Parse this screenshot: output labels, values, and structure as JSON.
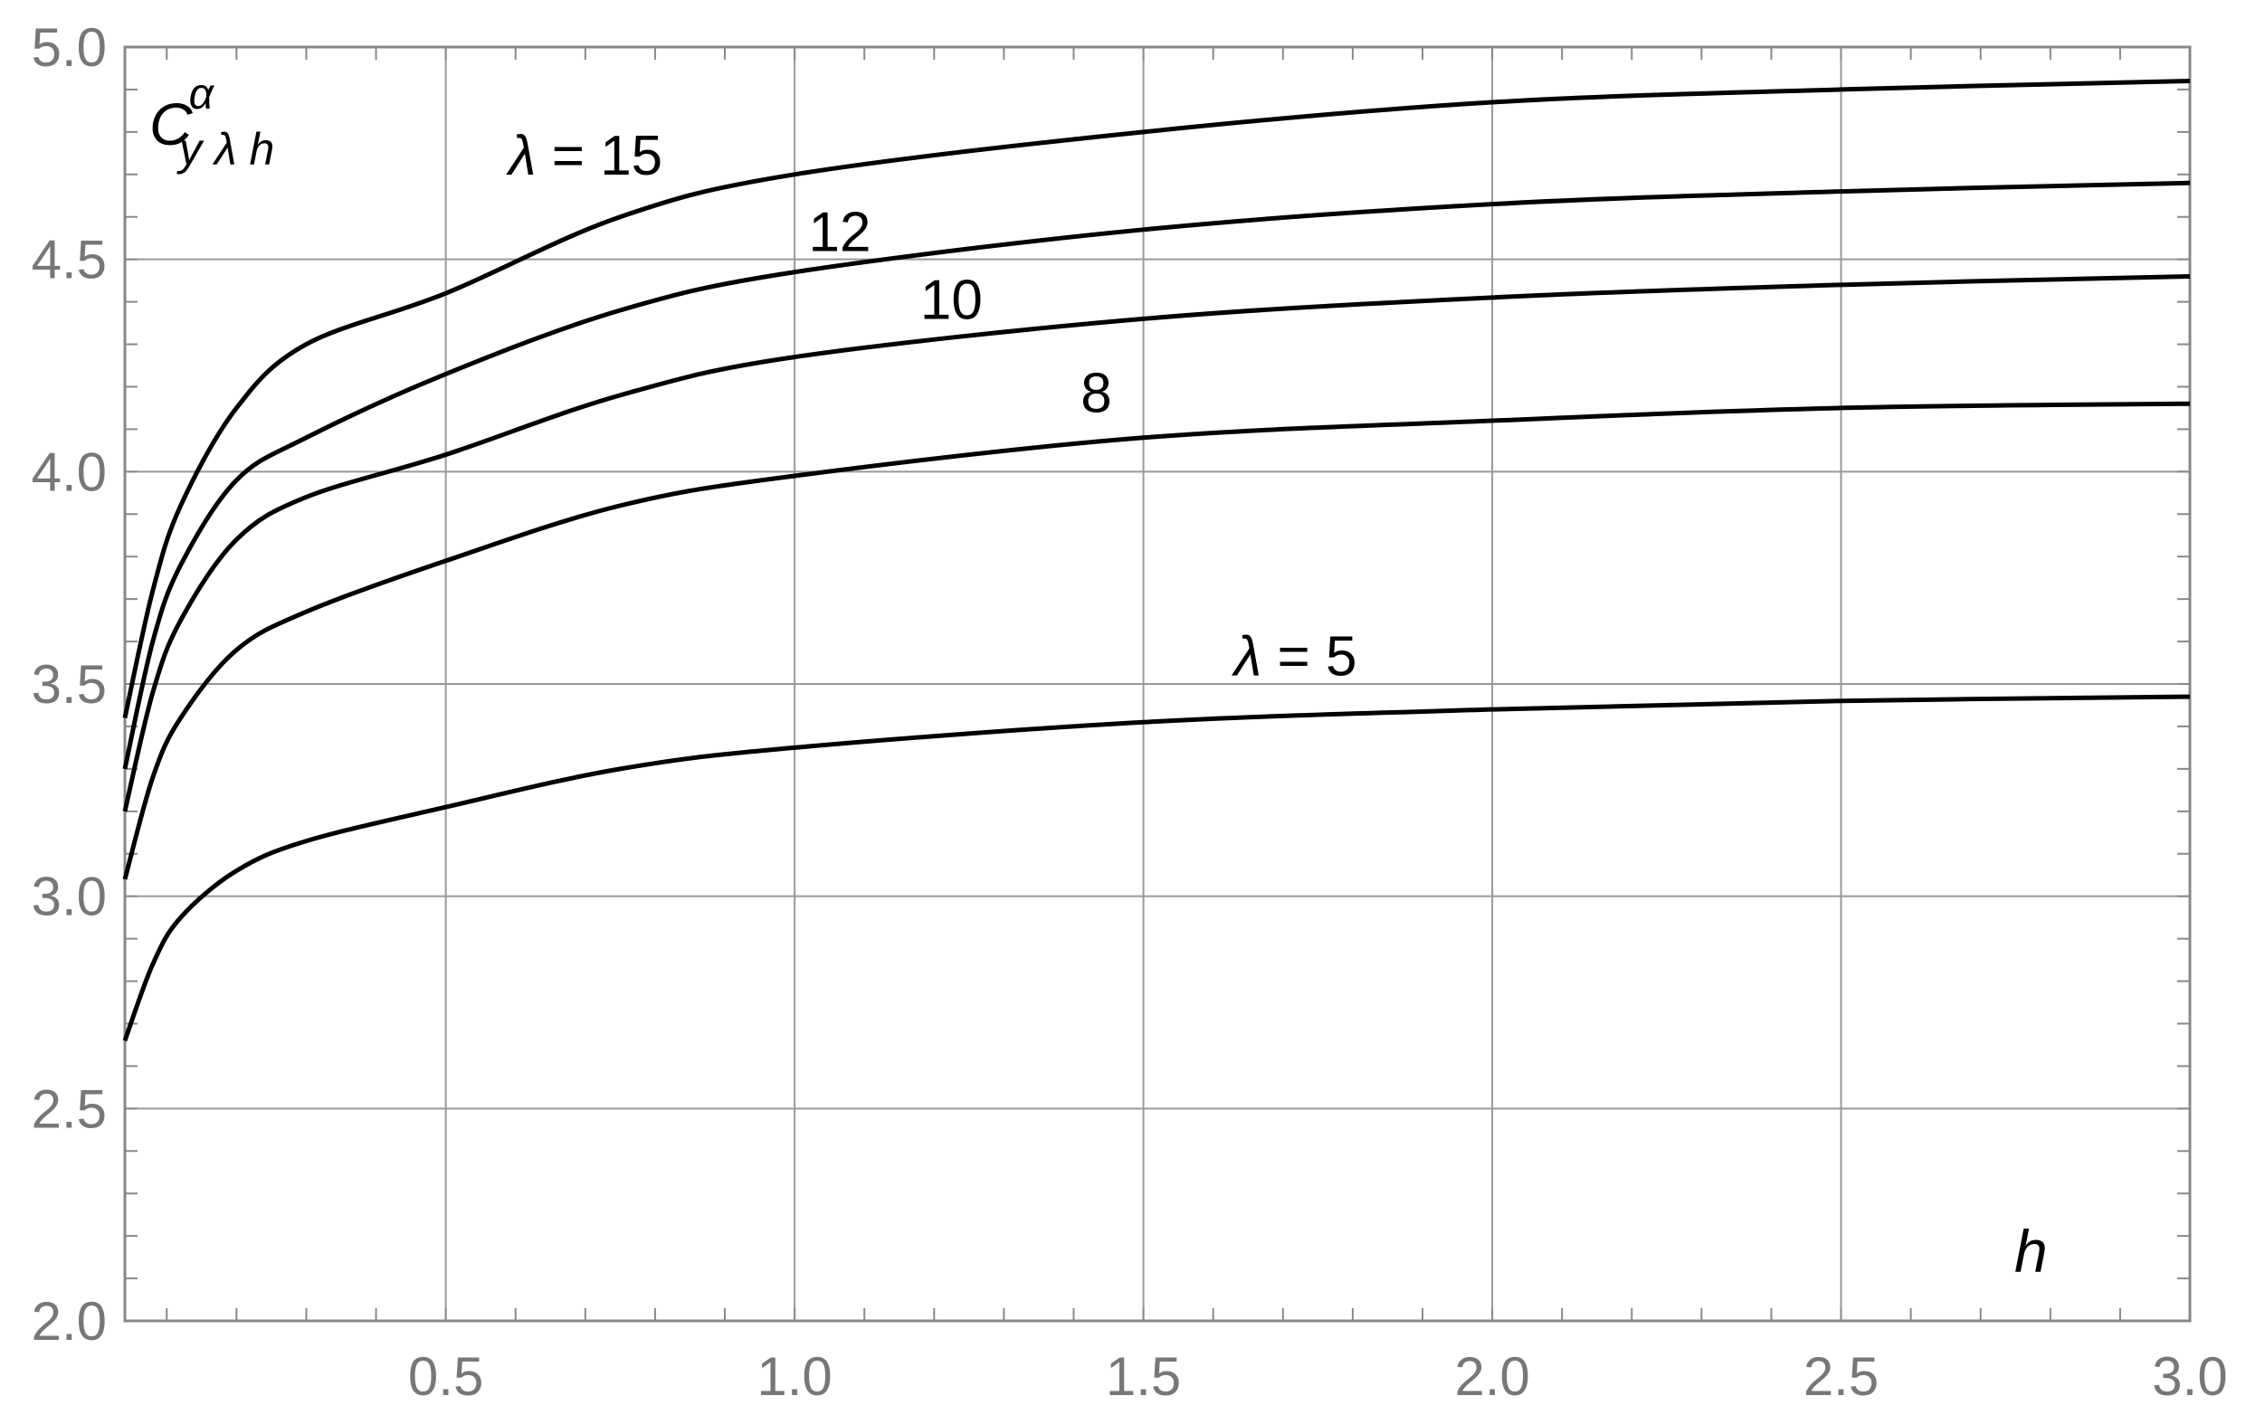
{
  "chart_data": {
    "type": "line",
    "xlabel": "h",
    "ylabel": "C",
    "ylabel_sup": "α",
    "ylabel_sub": "y λ h",
    "xlim": [
      0.04,
      3.0
    ],
    "ylim": [
      2.0,
      5.0
    ],
    "xticks": [
      0.5,
      1.0,
      1.5,
      2.0,
      2.5,
      3.0
    ],
    "xtick_labels": [
      "0.5",
      "1.0",
      "1.5",
      "2.0",
      "2.5",
      "3.0"
    ],
    "yticks": [
      2.0,
      2.5,
      3.0,
      3.5,
      4.0,
      4.5,
      5.0
    ],
    "ytick_labels": [
      "2.0",
      "2.5",
      "3.0",
      "3.5",
      "4.0",
      "4.5",
      "5.0"
    ],
    "grid": true,
    "line_color": "#000000",
    "grid_color": "#999999",
    "series": [
      {
        "name": "λ = 15",
        "x": [
          0.04,
          0.08,
          0.12,
          0.2,
          0.3,
          0.5,
          0.75,
          1.0,
          1.5,
          2.0,
          2.5,
          3.0
        ],
        "values": [
          3.42,
          3.72,
          3.92,
          4.15,
          4.3,
          4.42,
          4.6,
          4.7,
          4.8,
          4.87,
          4.9,
          4.92
        ]
      },
      {
        "name": "12",
        "x": [
          0.04,
          0.08,
          0.12,
          0.2,
          0.3,
          0.5,
          0.75,
          1.0,
          1.5,
          2.0,
          2.5,
          3.0
        ],
        "values": [
          3.3,
          3.6,
          3.78,
          3.98,
          4.08,
          4.23,
          4.38,
          4.47,
          4.57,
          4.63,
          4.66,
          4.68
        ]
      },
      {
        "name": "10",
        "x": [
          0.04,
          0.08,
          0.12,
          0.2,
          0.3,
          0.5,
          0.75,
          1.0,
          1.5,
          2.0,
          2.5,
          3.0
        ],
        "values": [
          3.2,
          3.48,
          3.65,
          3.84,
          3.94,
          4.04,
          4.18,
          4.27,
          4.36,
          4.41,
          4.44,
          4.46
        ]
      },
      {
        "name": "8",
        "x": [
          0.04,
          0.08,
          0.12,
          0.2,
          0.3,
          0.5,
          0.75,
          1.0,
          1.5,
          2.0,
          2.5,
          3.0
        ],
        "values": [
          3.04,
          3.28,
          3.42,
          3.58,
          3.67,
          3.79,
          3.92,
          3.99,
          4.08,
          4.12,
          4.15,
          4.16
        ]
      },
      {
        "name": "λ = 5",
        "x": [
          0.04,
          0.08,
          0.12,
          0.2,
          0.3,
          0.5,
          0.75,
          1.0,
          1.5,
          2.0,
          2.5,
          3.0
        ],
        "values": [
          2.66,
          2.84,
          2.95,
          3.06,
          3.13,
          3.21,
          3.3,
          3.35,
          3.41,
          3.44,
          3.46,
          3.47
        ]
      }
    ]
  }
}
